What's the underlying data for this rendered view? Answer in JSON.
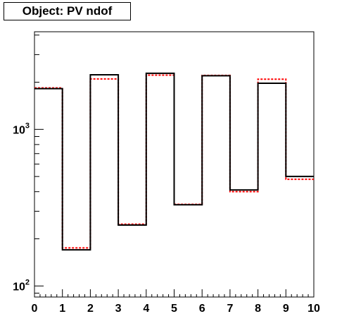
{
  "chart_data": {
    "type": "histogram",
    "title": "Object: PV ndof",
    "xlabel": "",
    "ylabel": "",
    "xlim": [
      0,
      10
    ],
    "ylim": [
      85,
      4200
    ],
    "yscale": "log",
    "x_ticks": [
      "0",
      "1",
      "2",
      "3",
      "4",
      "5",
      "6",
      "7",
      "8",
      "9",
      "10"
    ],
    "y_ticks": [
      {
        "value": 100,
        "base": "10",
        "exp": "2"
      },
      {
        "value": 1000,
        "base": "10",
        "exp": "3"
      }
    ],
    "bin_edges": [
      0,
      1,
      2,
      3,
      4,
      5,
      6,
      7,
      8,
      9,
      10
    ],
    "series": [
      {
        "style": "solid",
        "color": "#000000",
        "values": [
          1820,
          170,
          2230,
          245,
          2280,
          330,
          2200,
          410,
          1970,
          500
        ]
      },
      {
        "style": "dashed",
        "color": "#ff0000",
        "values": [
          1840,
          175,
          2100,
          248,
          2220,
          332,
          2210,
          400,
          2090,
          480
        ]
      }
    ],
    "grid": false,
    "legend": "none"
  }
}
